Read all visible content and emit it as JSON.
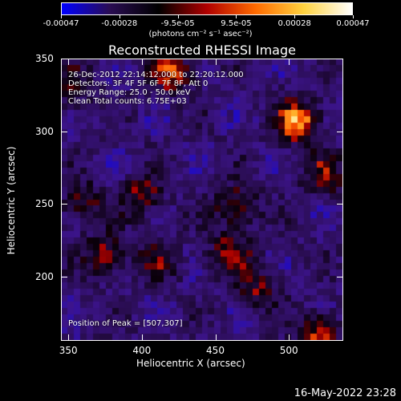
{
  "colorbar": {
    "labels": [
      "-0.00047",
      "-0.00028",
      "-9.5e-05",
      "9.5e-05",
      "0.00028",
      "0.00047"
    ],
    "unit_text": "(photons cm⁻² s⁻¹ asec⁻²)",
    "colors": [
      "#0000ff",
      "#2a0d52",
      "#000000",
      "#b00000",
      "#ff6a00",
      "#ffd23f",
      "#ffffff"
    ]
  },
  "title": "Reconstructed RHESSI Image",
  "annotations": {
    "time": "26-Dec-2012 22:14:12.000 to 22:20:12.000",
    "detectors": "Detectors: 3F 4F 5F 6F 7F 8F, Att 0",
    "energy": "Energy Range: 25.0 - 50.0 keV",
    "clean": "Clean     Total counts: 6.75E+03",
    "peak": "Position of Peak = [507,307]"
  },
  "axes": {
    "xlabel": "Heliocentric X (arcsec)",
    "ylabel": "Heliocentric Y (arcsec)",
    "xticks": [
      "350",
      "400",
      "450",
      "500"
    ],
    "yticks": [
      "350",
      "300",
      "250",
      "200"
    ]
  },
  "chart_data": {
    "type": "heatmap",
    "title": "Reconstructed RHESSI Image",
    "xlabel": "Heliocentric X (arcsec)",
    "ylabel": "Heliocentric Y (arcsec)",
    "xlim": [
      345,
      537
    ],
    "ylim": [
      156,
      350
    ],
    "zlim": [
      -0.00047,
      0.00047
    ],
    "peak": [
      507,
      307
    ],
    "sources": [
      {
        "x": 507,
        "y": 307,
        "strength": 1.0
      },
      {
        "x": 420,
        "y": 340,
        "strength": 0.7
      },
      {
        "x": 400,
        "y": 255,
        "strength": 0.55
      },
      {
        "x": 465,
        "y": 248,
        "strength": 0.6
      },
      {
        "x": 360,
        "y": 250,
        "strength": 0.5
      },
      {
        "x": 375,
        "y": 215,
        "strength": 0.55
      },
      {
        "x": 460,
        "y": 215,
        "strength": 0.6
      },
      {
        "x": 520,
        "y": 160,
        "strength": 0.7
      },
      {
        "x": 525,
        "y": 270,
        "strength": 0.5
      },
      {
        "x": 350,
        "y": 330,
        "strength": 0.45
      },
      {
        "x": 480,
        "y": 190,
        "strength": 0.45
      },
      {
        "x": 410,
        "y": 210,
        "strength": 0.4
      }
    ]
  },
  "timestamp": "16-May-2022 23:28"
}
